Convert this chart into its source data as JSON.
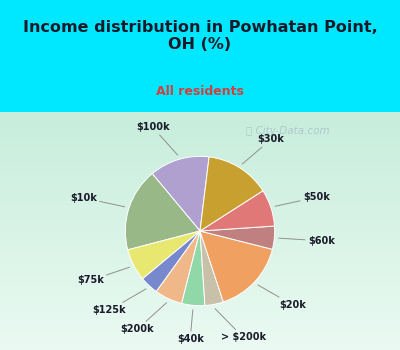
{
  "title": "Income distribution in Powhatan Point,\nOH (%)",
  "subtitle": "All residents",
  "labels": [
    "$100k",
    "$10k",
    "$75k",
    "$125k",
    "$200k",
    "$40k",
    "> $200k",
    "$20k",
    "$60k",
    "$50k",
    "$30k"
  ],
  "values": [
    13,
    18,
    7,
    4,
    6,
    5,
    4,
    16,
    5,
    8,
    14
  ],
  "colors": [
    "#b0a0d0",
    "#98b888",
    "#e8e870",
    "#7888cc",
    "#f0b888",
    "#90d8a8",
    "#c8c0a8",
    "#f0a060",
    "#c08080",
    "#e07878",
    "#c8a030"
  ],
  "bg_cyan": "#00e8ff",
  "bg_chart_grad_top": "#c8ecd8",
  "bg_chart_grad_bot": "#e8f8f0",
  "title_color": "#1a1a2a",
  "subtitle_color": "#d04040",
  "watermark": "City-Data.com",
  "label_fontsize": 7,
  "startangle": 83,
  "title_fontsize": 11.5,
  "subtitle_fontsize": 9
}
